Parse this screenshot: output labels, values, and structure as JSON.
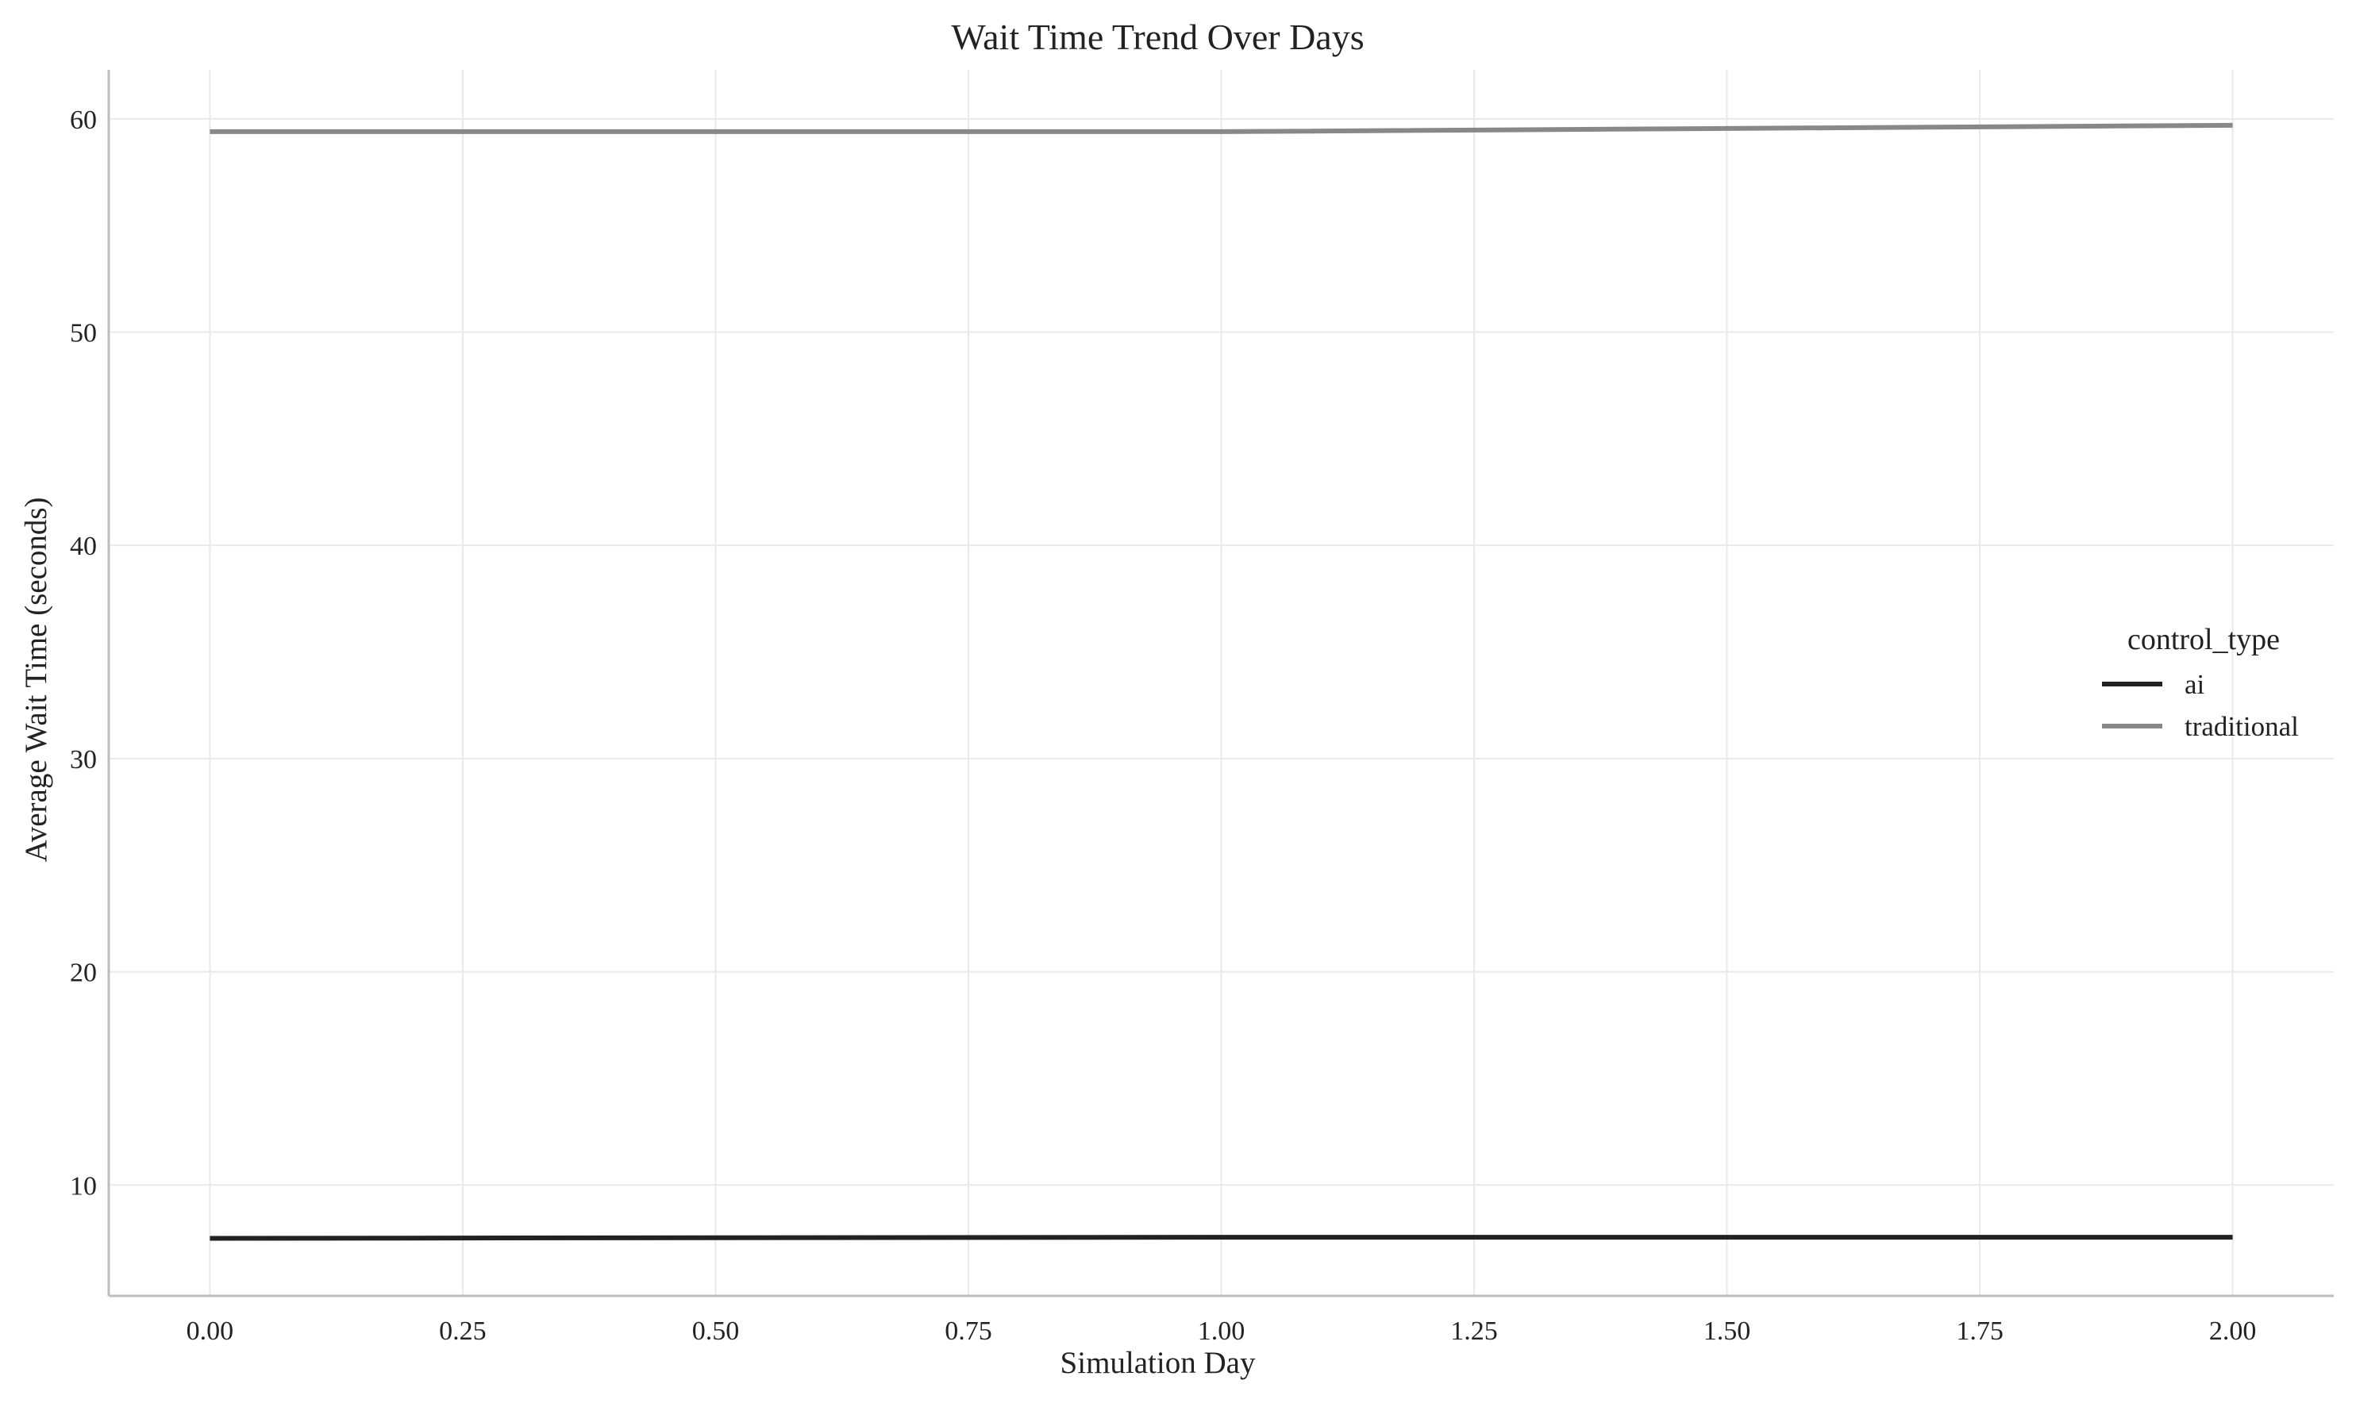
{
  "chart_data": {
    "type": "line",
    "title": "Wait Time Trend Over Days",
    "xlabel": "Simulation Day",
    "ylabel": "Average Wait Time (seconds)",
    "xlim": [
      -0.1,
      2.1
    ],
    "ylim": [
      4.8,
      62.3
    ],
    "xticks": [
      0.0,
      0.25,
      0.5,
      0.75,
      1.0,
      1.25,
      1.5,
      1.75,
      2.0
    ],
    "xtick_labels": [
      "0.00",
      "0.25",
      "0.50",
      "0.75",
      "1.00",
      "1.25",
      "1.50",
      "1.75",
      "2.00"
    ],
    "yticks": [
      10,
      20,
      30,
      40,
      50,
      60
    ],
    "ytick_labels": [
      "10",
      "20",
      "30",
      "40",
      "50",
      "60"
    ],
    "grid": true,
    "legend": {
      "title": "control_type",
      "placement": "center-right"
    },
    "x": [
      0,
      1,
      2
    ],
    "series": [
      {
        "name": "ai",
        "color": "#222222",
        "values": [
          7.5,
          7.55,
          7.55
        ]
      },
      {
        "name": "traditional",
        "color": "#888888",
        "values": [
          59.4,
          59.4,
          59.7
        ]
      }
    ]
  }
}
